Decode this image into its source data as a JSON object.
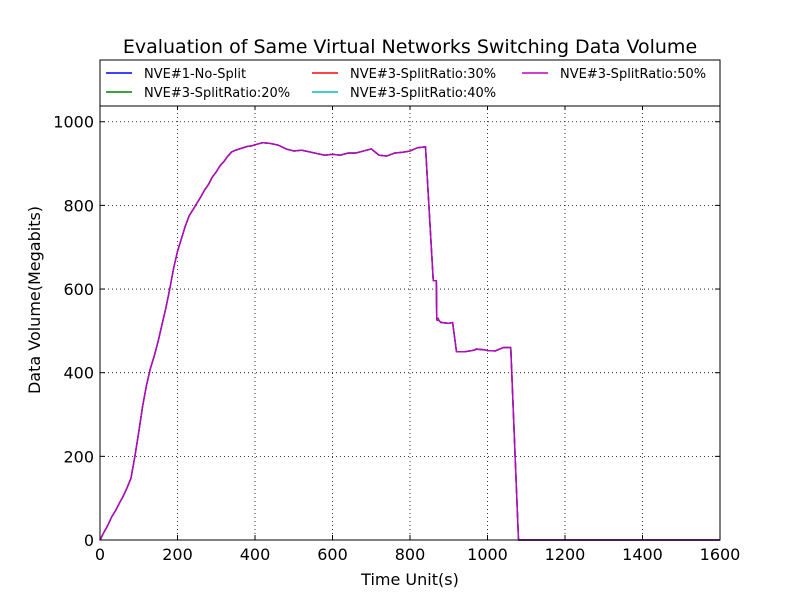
{
  "chart_data": {
    "type": "line",
    "title": "Evaluation of Same Virtual Networks Switching Data Volume",
    "xlabel": "Time Unit(s)",
    "ylabel": "Data Volume(Megabits)",
    "xlim": [
      0,
      1600
    ],
    "ylim": [
      0,
      1040
    ],
    "xticks": [
      0,
      200,
      400,
      600,
      800,
      1000,
      1200,
      1400,
      1600
    ],
    "yticks": [
      0,
      200,
      400,
      600,
      800,
      1000
    ],
    "xtick_labels": [
      "0",
      "200",
      "400",
      "600",
      "800",
      "1000",
      "1200",
      "1400",
      "1600"
    ],
    "ytick_labels": [
      "0",
      "200",
      "400",
      "600",
      "800",
      "1000"
    ],
    "grid": true,
    "legend": {
      "position": "top",
      "columns": 3
    },
    "series": [
      {
        "name": "NVE#1-No-Split",
        "color": "#0000ff"
      },
      {
        "name": "NVE#3-SplitRatio:20%",
        "color": "#008000"
      },
      {
        "name": "NVE#3-SplitRatio:30%",
        "color": "#ff0000"
      },
      {
        "name": "NVE#3-SplitRatio:40%",
        "color": "#00bfbf"
      },
      {
        "name": "NVE#3-SplitRatio:50%",
        "color": "#bf00bf"
      }
    ],
    "shared_curve": {
      "x": [
        0,
        10,
        20,
        30,
        40,
        50,
        60,
        70,
        80,
        90,
        100,
        110,
        120,
        130,
        140,
        150,
        160,
        170,
        180,
        190,
        200,
        210,
        220,
        230,
        240,
        250,
        260,
        270,
        280,
        290,
        300,
        310,
        320,
        330,
        340,
        350,
        360,
        370,
        380,
        390,
        400,
        420,
        440,
        460,
        480,
        500,
        520,
        540,
        560,
        580,
        600,
        620,
        640,
        660,
        680,
        700,
        720,
        740,
        760,
        780,
        800,
        820,
        840,
        860,
        868,
        869,
        870,
        873,
        874,
        880,
        900,
        910,
        920,
        940,
        960,
        970,
        971,
        975,
        990,
        1000,
        1020,
        1040,
        1060,
        1080,
        1095,
        1096,
        1100,
        1200,
        1300,
        1400,
        1500,
        1600
      ],
      "y": [
        0,
        18,
        35,
        55,
        70,
        88,
        105,
        125,
        148,
        200,
        258,
        320,
        370,
        410,
        440,
        475,
        515,
        555,
        600,
        650,
        690,
        720,
        750,
        775,
        790,
        805,
        820,
        837,
        850,
        868,
        880,
        895,
        905,
        918,
        928,
        932,
        935,
        938,
        941,
        942,
        945,
        950,
        948,
        944,
        935,
        930,
        932,
        928,
        924,
        920,
        922,
        920,
        925,
        925,
        930,
        935,
        920,
        918,
        925,
        927,
        930,
        938,
        940,
        620,
        620,
        528,
        525,
        530,
        525,
        520,
        518,
        520,
        450,
        450,
        453,
        455,
        457,
        456,
        455,
        453,
        452,
        460,
        460,
        0,
        0,
        0,
        0,
        0,
        0,
        0,
        0,
        0
      ]
    }
  }
}
